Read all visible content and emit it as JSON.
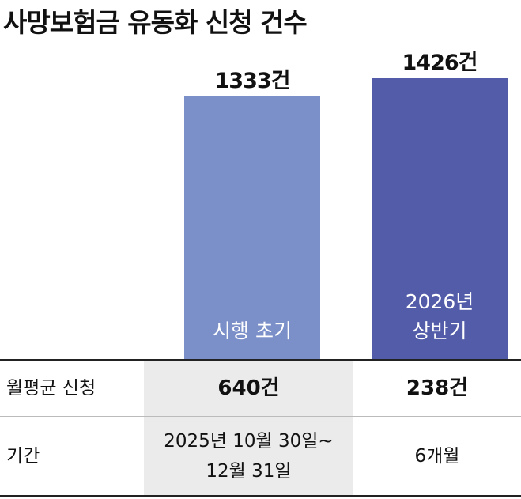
{
  "chart_data": {
    "type": "bar",
    "title": "사망보험금 유동화 신청 건수",
    "categories": [
      "시행 초기",
      "2026년\n상반기"
    ],
    "values": [
      1333,
      1426
    ],
    "value_labels": [
      "1333건",
      "1426건"
    ],
    "colors": [
      "#7b8fc8",
      "#525ca9"
    ]
  },
  "table": {
    "rows": [
      [
        "월평균 신청",
        "640건",
        "238건"
      ],
      [
        "기간",
        "2025년 10월 30일~\n12월 31일",
        "6개월"
      ]
    ]
  }
}
